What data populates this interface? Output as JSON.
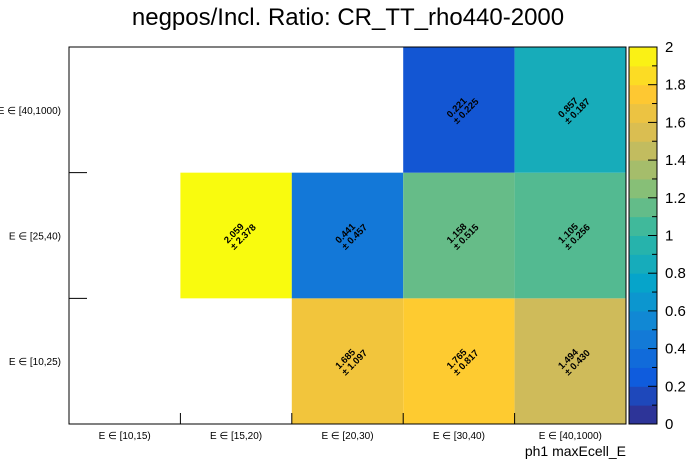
{
  "chart_data": {
    "type": "heatmap",
    "title": "negpos/Incl. Ratio: CR_TT_rho440-2000",
    "xlabel": "ph1 maxEcell_E",
    "ylabel": "",
    "x_categories": [
      "E ∈ [10,15)",
      "E ∈ [15,20)",
      "E ∈ [20,30)",
      "E ∈ [30,40)",
      "E ∈ [40,1000)"
    ],
    "y_categories": [
      "E ∈ [10,25)",
      "E ∈ [25,40)",
      "E ∈ [40,1000)"
    ],
    "cells": [
      {
        "x": 2,
        "y": 0,
        "value": 1.685,
        "error": 1.097,
        "value_label": "1.685",
        "error_label": "± 1.097"
      },
      {
        "x": 3,
        "y": 0,
        "value": 1.765,
        "error": 0.817,
        "value_label": "1.765",
        "error_label": "± 0.817"
      },
      {
        "x": 4,
        "y": 0,
        "value": 1.494,
        "error": 0.43,
        "value_label": "1.494",
        "error_label": "± 0.430"
      },
      {
        "x": 1,
        "y": 1,
        "value": 2.059,
        "error": 2.378,
        "value_label": "2.059",
        "error_label": "± 2.378"
      },
      {
        "x": 2,
        "y": 1,
        "value": 0.441,
        "error": 0.457,
        "value_label": "0.441",
        "error_label": "± 0.457"
      },
      {
        "x": 3,
        "y": 1,
        "value": 1.158,
        "error": 0.515,
        "value_label": "1.158",
        "error_label": "± 0.515"
      },
      {
        "x": 4,
        "y": 1,
        "value": 1.105,
        "error": 0.256,
        "value_label": "1.105",
        "error_label": "± 0.256"
      },
      {
        "x": 3,
        "y": 2,
        "value": 0.221,
        "error": 0.225,
        "value_label": "0.221",
        "error_label": "± 0.225"
      },
      {
        "x": 4,
        "y": 2,
        "value": 0.857,
        "error": 0.187,
        "value_label": "0.857",
        "error_label": "± 0.187"
      }
    ],
    "zlim": [
      0,
      2
    ],
    "z_ticks": [
      "0",
      "0.2",
      "0.4",
      "0.6",
      "0.8",
      "1",
      "1.2",
      "1.4",
      "1.6",
      "1.8",
      "2"
    ],
    "colormap": [
      "#352a87",
      "#0f5cdd",
      "#1481d6",
      "#06a4ca",
      "#2eb7a4",
      "#87bf77",
      "#d1bb59",
      "#fec832",
      "#f9fb0e"
    ],
    "grid": false,
    "legend": "colorbar-right"
  }
}
